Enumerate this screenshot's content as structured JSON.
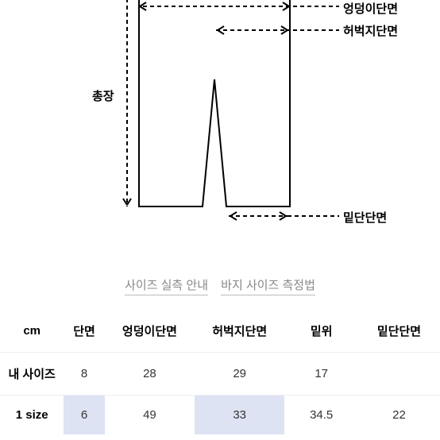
{
  "diagram": {
    "labels": {
      "hip": "엉덩이단면",
      "thigh": "허벅지단면",
      "length": "총장",
      "hem": "밑단단면"
    },
    "stroke": "#000000",
    "dash": "5,4",
    "stroke_width": 2
  },
  "links": {
    "guide": "사이즈 실측 안내",
    "method": "바지 사이즈 측정법"
  },
  "table": {
    "unit": "cm",
    "columns": [
      "단면",
      "엉덩이단면",
      "허벅지단면",
      "밑위",
      "밑단단면"
    ],
    "rows": [
      {
        "label": "내 사이즈",
        "values": [
          "8",
          "28",
          "29",
          "17",
          ""
        ]
      },
      {
        "label": "1 size",
        "values": [
          "6",
          "49",
          "33",
          "34.5",
          "22"
        ],
        "highlight": [
          0,
          2
        ]
      }
    ]
  }
}
